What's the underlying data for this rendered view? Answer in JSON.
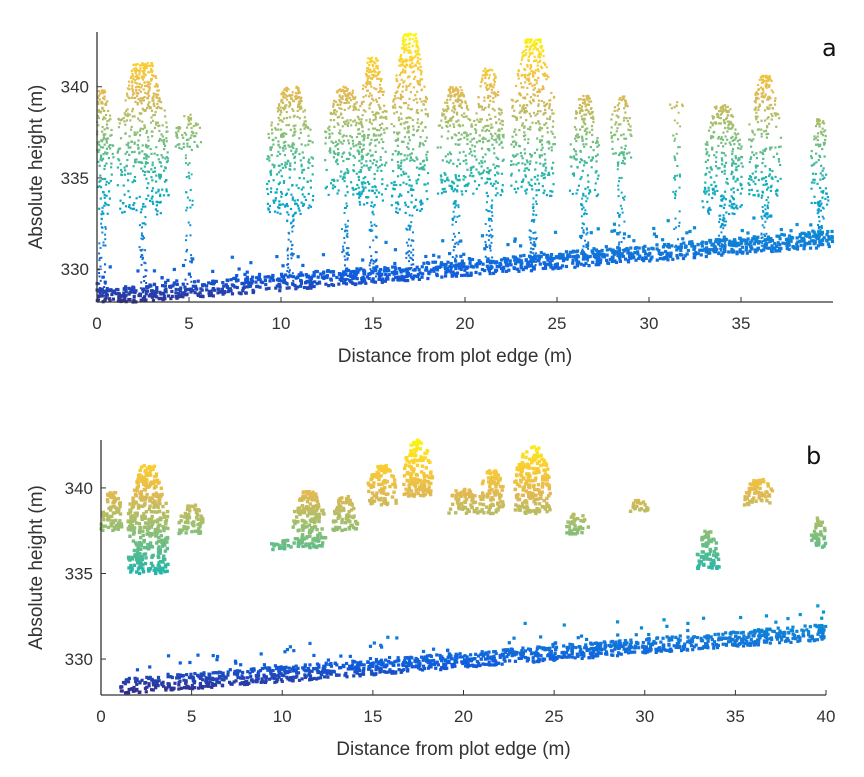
{
  "chart_data": [
    {
      "type": "scatter",
      "panel_label": "a",
      "xlabel": "Distance from plot edge (m)",
      "ylabel": "Absolute height (m)",
      "xlim": [
        0,
        40
      ],
      "ylim": [
        328.2,
        343
      ],
      "xticks": [
        0,
        5,
        10,
        15,
        20,
        25,
        30,
        35
      ],
      "yticks": [
        330,
        335,
        340
      ],
      "colormap": "parula",
      "color_by": "height",
      "ground": {
        "x": [
          0,
          40
        ],
        "y": [
          328.3,
          331.5
        ]
      },
      "crowns": [
        {
          "x": 0.3,
          "top": 339.8,
          "width": 1.2,
          "base": 333
        },
        {
          "x": 2.5,
          "top": 341.3,
          "width": 2.8,
          "base": 333
        },
        {
          "x": 5,
          "top": 338.5,
          "width": 1.5,
          "base": 336.5
        },
        {
          "x": 10.5,
          "top": 340,
          "width": 2.5,
          "base": 333
        },
        {
          "x": 13.5,
          "top": 340,
          "width": 2.2,
          "base": 334
        },
        {
          "x": 15,
          "top": 341.6,
          "width": 1.6,
          "base": 333.5
        },
        {
          "x": 17,
          "top": 342.9,
          "width": 2,
          "base": 333
        },
        {
          "x": 19.5,
          "top": 340,
          "width": 2,
          "base": 334
        },
        {
          "x": 21.3,
          "top": 341,
          "width": 1.6,
          "base": 334
        },
        {
          "x": 23.7,
          "top": 342.6,
          "width": 2.4,
          "base": 334
        },
        {
          "x": 26.5,
          "top": 339.5,
          "width": 1.6,
          "base": 334
        },
        {
          "x": 28.5,
          "top": 339.5,
          "width": 1.2,
          "base": 336
        },
        {
          "x": 31.5,
          "top": 339.2,
          "width": 0.8,
          "base": 338.7
        },
        {
          "x": 34,
          "top": 339,
          "width": 2.2,
          "base": 333
        },
        {
          "x": 36.3,
          "top": 340.6,
          "width": 1.8,
          "base": 334
        },
        {
          "x": 39.3,
          "top": 338.3,
          "width": 1,
          "base": 333.5
        }
      ]
    },
    {
      "type": "scatter",
      "panel_label": "b",
      "xlabel": "Distance from plot edge (m)",
      "ylabel": "Absolute height (m)",
      "xlim": [
        0,
        40
      ],
      "ylim": [
        327.9,
        342.8
      ],
      "xticks": [
        0,
        5,
        10,
        15,
        20,
        25,
        30,
        35,
        40
      ],
      "yticks": [
        330,
        335,
        340
      ],
      "colormap": "parula",
      "color_by": "height",
      "ground": {
        "x": [
          1,
          40
        ],
        "y": [
          328.2,
          331.4
        ]
      },
      "crowns": [
        {
          "x": 0.6,
          "top": 339.8,
          "width": 1.2,
          "base": 337.5
        },
        {
          "x": 2.6,
          "top": 341.3,
          "width": 2.2,
          "base": 335
        },
        {
          "x": 5,
          "top": 339,
          "width": 1.4,
          "base": 337.3
        },
        {
          "x": 10,
          "top": 337,
          "width": 1.2,
          "base": 336.4
        },
        {
          "x": 11.5,
          "top": 339.8,
          "width": 1.8,
          "base": 336.5
        },
        {
          "x": 13.5,
          "top": 339.5,
          "width": 1.4,
          "base": 337.5
        },
        {
          "x": 15.5,
          "top": 341.3,
          "width": 1.6,
          "base": 339
        },
        {
          "x": 17.5,
          "top": 342.8,
          "width": 1.6,
          "base": 339.5
        },
        {
          "x": 20,
          "top": 340,
          "width": 1.6,
          "base": 338.5
        },
        {
          "x": 21.6,
          "top": 341,
          "width": 1.4,
          "base": 338.5
        },
        {
          "x": 23.8,
          "top": 342.4,
          "width": 2,
          "base": 338.5
        },
        {
          "x": 26.3,
          "top": 338.5,
          "width": 1.2,
          "base": 337.3
        },
        {
          "x": 29.7,
          "top": 339.3,
          "width": 1,
          "base": 338.5
        },
        {
          "x": 33.5,
          "top": 337.5,
          "width": 1.2,
          "base": 335.3
        },
        {
          "x": 36.3,
          "top": 340.5,
          "width": 1.6,
          "base": 339
        },
        {
          "x": 39.6,
          "top": 338.3,
          "width": 0.8,
          "base": 336.5
        }
      ]
    }
  ]
}
